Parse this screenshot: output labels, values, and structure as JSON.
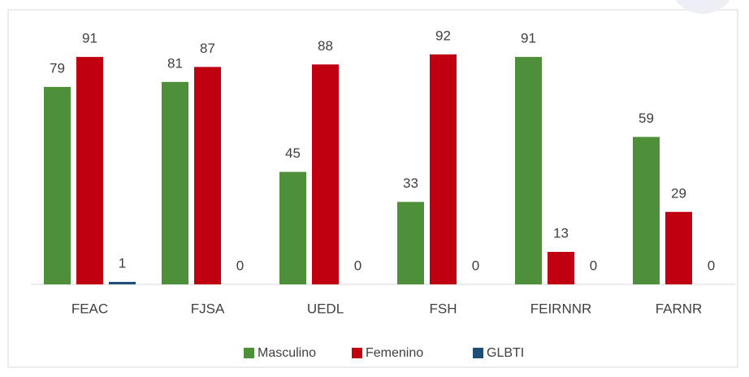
{
  "chart_data": {
    "type": "bar",
    "categories": [
      "FEAC",
      "FJSA",
      "UEDL",
      "FSH",
      "FEIRNNR",
      "FARNR"
    ],
    "series": [
      {
        "name": "Masculino",
        "color": "#4e8f3a",
        "values": [
          79,
          81,
          45,
          33,
          91,
          59
        ]
      },
      {
        "name": "Femenino",
        "color": "#c00010",
        "values": [
          91,
          87,
          88,
          92,
          13,
          29
        ]
      },
      {
        "name": "GLBTI",
        "color": "#1f4e79",
        "values": [
          1,
          0,
          0,
          0,
          0,
          0
        ]
      }
    ],
    "legend": "bottom"
  }
}
